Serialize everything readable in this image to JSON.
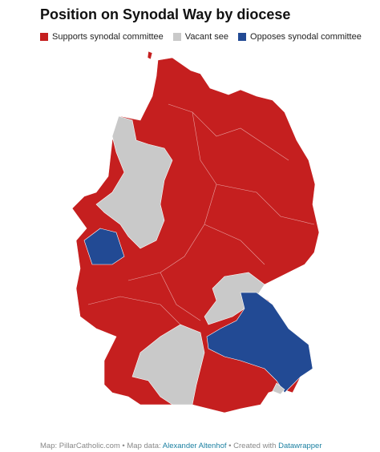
{
  "title": "Position on Synodal Way by diocese",
  "legend": [
    {
      "label": "Supports synodal committee",
      "color": "#c51f1f"
    },
    {
      "label": "Vacant see",
      "color": "#c9c9c9"
    },
    {
      "label": "Opposes synodal committee",
      "color": "#224a94"
    }
  ],
  "footer": {
    "source": "Map: PillarCatholic.com • Map data:",
    "author": "Alexander Altenhof",
    "created": "• Created with",
    "tool": "Datawrapper"
  }
}
